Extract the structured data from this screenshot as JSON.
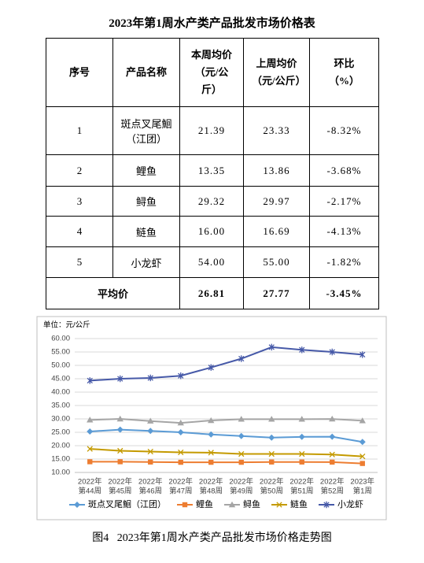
{
  "table": {
    "title": "2023年第1周水产类产品批发市场价格表",
    "header": [
      {
        "label": "序号"
      },
      {
        "label": "产品名称"
      },
      {
        "label": "本周均价",
        "unit": "（元/公斤）"
      },
      {
        "label": "上周均价",
        "unit": "（元/公斤）"
      },
      {
        "label": "环比",
        "unit": "（%）"
      }
    ],
    "rows": [
      [
        "1",
        "斑点叉尾鮰（江团）",
        "21.39",
        "23.33",
        "-8.32%"
      ],
      [
        "2",
        "鲤鱼",
        "13.35",
        "13.86",
        "-3.68%"
      ],
      [
        "3",
        "鲟鱼",
        "29.32",
        "29.97",
        "-2.17%"
      ],
      [
        "4",
        "鲢鱼",
        "16.00",
        "16.69",
        "-4.13%"
      ],
      [
        "5",
        "小龙虾",
        "54.00",
        "55.00",
        "-1.82%"
      ]
    ],
    "average": {
      "label": "平均价",
      "values": [
        "26.81",
        "27.77",
        "-3.45%"
      ]
    }
  },
  "chart_data": {
    "type": "line",
    "y_label": "单位：元/公斤",
    "categories": [
      [
        "2022年",
        "第44周"
      ],
      [
        "2022年",
        "第45周"
      ],
      [
        "2022年",
        "第46周"
      ],
      [
        "2022年",
        "第47周"
      ],
      [
        "2022年",
        "第48周"
      ],
      [
        "2022年",
        "第49周"
      ],
      [
        "2022年",
        "第50周"
      ],
      [
        "2022年",
        "第51周"
      ],
      [
        "2022年",
        "第52周"
      ],
      [
        "2023年",
        "第1周"
      ]
    ],
    "ylim": [
      10,
      60
    ],
    "yticks": [
      {
        "value": 10,
        "label": "10.00"
      },
      {
        "value": 15,
        "label": "15.00"
      },
      {
        "value": 20,
        "label": "20.00"
      },
      {
        "value": 25,
        "label": "25.00"
      },
      {
        "value": 30,
        "label": "30.00"
      },
      {
        "value": 35,
        "label": "35.00"
      },
      {
        "value": 40,
        "label": "40.00"
      },
      {
        "value": 45,
        "label": "45.00"
      },
      {
        "value": 50,
        "label": "50.00"
      },
      {
        "value": 55,
        "label": "55.00"
      },
      {
        "value": 60,
        "label": "60.00"
      }
    ],
    "grid": true,
    "legend": "bottom",
    "series": [
      {
        "name": "斑点叉尾鮰（江团）",
        "color": "#5b9bd5",
        "marker": "diamond",
        "values": [
          25.3,
          26.0,
          25.5,
          25.0,
          24.2,
          23.6,
          23.0,
          23.3,
          23.33,
          21.39
        ]
      },
      {
        "name": "鲤鱼",
        "color": "#ed7d31",
        "marker": "square",
        "values": [
          14.0,
          14.0,
          13.9,
          13.8,
          13.8,
          13.8,
          13.9,
          13.9,
          13.86,
          13.35
        ]
      },
      {
        "name": "鲟鱼",
        "color": "#a5a5a5",
        "marker": "triangle",
        "values": [
          29.6,
          30.0,
          29.2,
          28.5,
          29.4,
          29.9,
          29.9,
          29.9,
          29.97,
          29.32
        ]
      },
      {
        "name": "鲢鱼",
        "color": "#c49a00",
        "marker": "x",
        "values": [
          18.8,
          18.1,
          17.8,
          17.5,
          17.4,
          16.9,
          16.9,
          16.9,
          16.69,
          16.0
        ]
      },
      {
        "name": "小龙虾",
        "color": "#4659a8",
        "marker": "star",
        "values": [
          44.3,
          45.0,
          45.3,
          46.1,
          49.2,
          52.5,
          56.8,
          55.8,
          55.0,
          54.0
        ]
      }
    ]
  },
  "caption": {
    "label": "图4",
    "text": "2023年第1周水产类产品批发市场价格走势图"
  }
}
